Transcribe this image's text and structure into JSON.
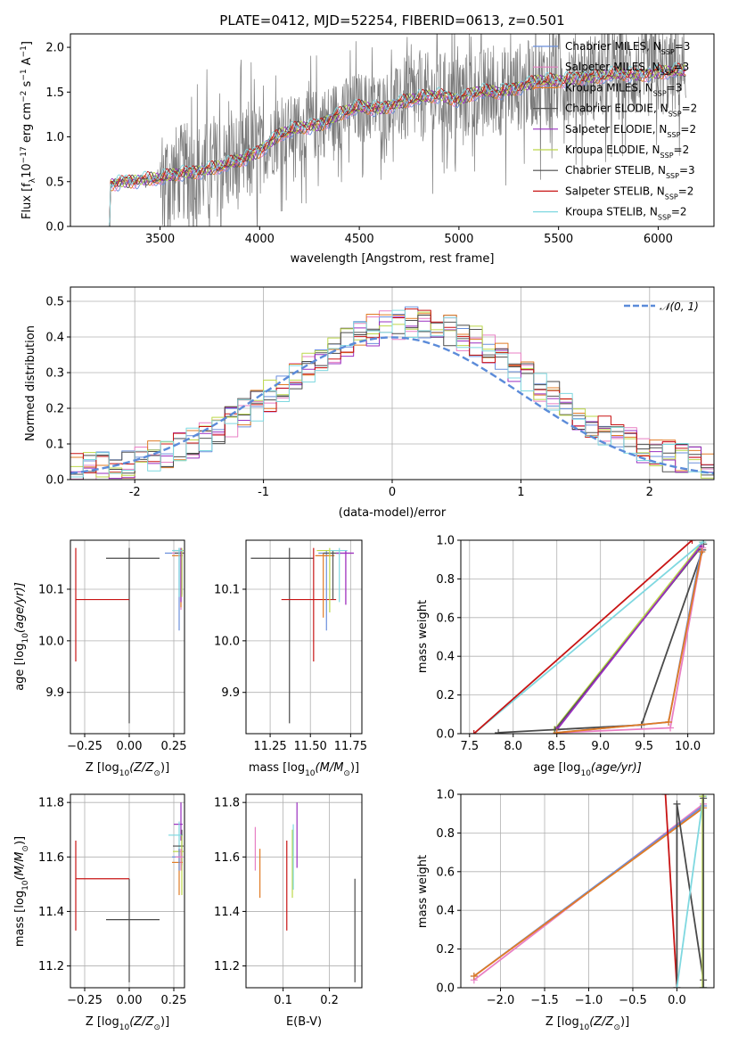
{
  "colors": {
    "chabrier_miles": "#6a8fdc",
    "salpeter_miles": "#e87fc4",
    "kroupa_miles": "#e07b25",
    "chabrier_elodie": "#555555",
    "salpeter_elodie": "#9a2fc0",
    "kroupa_elodie": "#bcd84a",
    "chabrier_stelib": "#4a4a4a",
    "salpeter_stelib": "#c81414",
    "kroupa_stelib": "#7fd8e0",
    "data": "#7a7a7a",
    "gauss": "#5b8bd9"
  },
  "legend": {
    "chabrier_miles": "Chabrier MILES, N",
    "chabrier_miles_sub": "SSP",
    "chabrier_miles_val": "=3",
    "salpeter_miles": "Salpeter MILES, N",
    "salpeter_miles_sub": "SSP",
    "salpeter_miles_val": "=3",
    "kroupa_miles": "Kroupa MILES, N",
    "kroupa_miles_sub": "SSP",
    "kroupa_miles_val": "=3",
    "chabrier_elodie": "Chabrier ELODIE, N",
    "chabrier_elodie_sub": "SSP",
    "chabrier_elodie_val": "=2",
    "salpeter_elodie": "Salpeter ELODIE, N",
    "salpeter_elodie_sub": "SSP",
    "salpeter_elodie_val": "=2",
    "kroupa_elodie": "Kroupa ELODIE, N",
    "kroupa_elodie_sub": "SSP",
    "kroupa_elodie_val": "=2",
    "chabrier_stelib": "Chabrier STELIB, N",
    "chabrier_stelib_sub": "SSP",
    "chabrier_stelib_val": "=3",
    "salpeter_stelib": "Salpeter STELIB, N",
    "salpeter_stelib_sub": "SSP",
    "salpeter_stelib_val": "=2",
    "kroupa_stelib": "Kroupa STELIB, N",
    "kroupa_stelib_sub": "SSP",
    "kroupa_stelib_val": "=2",
    "gauss": "𝒩(0, 1)"
  },
  "chart_data": [
    {
      "id": "spectrum",
      "type": "line",
      "title": "PLATE=0412, MJD=52254, FIBERID=0613, z=0.501",
      "xlabel": "wavelength [Angstrom, rest frame]",
      "ylabel_parts": [
        "Flux [f",
        "λ",
        "10",
        "−17",
        " erg cm",
        "−2",
        " s",
        "−1",
        " A",
        "−1",
        "]"
      ],
      "xlim": [
        3050,
        6280
      ],
      "ylim": [
        0,
        2.15
      ],
      "xticks": [
        3500,
        4000,
        4500,
        5000,
        5500,
        6000
      ],
      "yticks": [
        0.0,
        0.5,
        1.0,
        1.5,
        2.0
      ],
      "model_continuum": {
        "x": [
          3240,
          3250,
          3300,
          3400,
          3500,
          3600,
          3700,
          3800,
          3900,
          4000,
          4100,
          4200,
          4300,
          4400,
          4500,
          4600,
          4700,
          4800,
          4900,
          5000,
          5100,
          5200,
          5300,
          5400,
          5500,
          5600,
          5700,
          5800,
          5900,
          6000,
          6100
        ],
        "y": [
          0.0,
          0.47,
          0.5,
          0.52,
          0.53,
          0.6,
          0.62,
          0.66,
          0.74,
          0.85,
          1.02,
          1.1,
          1.14,
          1.25,
          1.33,
          1.32,
          1.38,
          1.43,
          1.47,
          1.42,
          1.5,
          1.5,
          1.56,
          1.62,
          1.62,
          1.67,
          1.67,
          1.7,
          1.7,
          1.72,
          1.73
        ]
      }
    },
    {
      "id": "residuals",
      "type": "step",
      "xlabel": "(data-model)/error",
      "ylabel": "Normed distribution",
      "xlim": [
        -2.5,
        2.5
      ],
      "ylim": [
        0,
        0.54
      ],
      "xticks": [
        -2,
        -1,
        0,
        1,
        2
      ],
      "yticks": [
        0.0,
        0.1,
        0.2,
        0.3,
        0.4,
        0.5
      ],
      "gaussian": {
        "mean": 0,
        "sigma": 1
      }
    },
    {
      "id": "age_vs_Z",
      "type": "errorbar",
      "xlabel_parts": [
        "Z [log",
        "10",
        "(Z/Z",
        "⊙",
        ")]"
      ],
      "ylabel_parts": [
        "age  [log",
        "10",
        "(age/yr)]"
      ],
      "xlim": [
        -0.33,
        0.31
      ],
      "ylim": [
        9.82,
        10.195
      ],
      "xticks": [
        -0.25,
        0.0,
        0.25
      ],
      "xtick_labels": [
        "−0.25",
        "0.00",
        "0.25"
      ],
      "yticks": [
        9.9,
        10.0,
        10.1
      ],
      "ytick_labels": [
        "9.9",
        "10.0",
        "10.1"
      ],
      "points": [
        {
          "series": "chabrier_stelib",
          "x": 0.0,
          "xerr": [
            0.13,
            0.17
          ],
          "y": 10.16,
          "yerr": [
            0.32,
            0.02
          ]
        },
        {
          "series": "salpeter_stelib",
          "x": -0.3,
          "xerr": [
            0.0,
            0.3
          ],
          "y": 10.08,
          "yerr": [
            0.12,
            0.1
          ]
        },
        {
          "series": "chabrier_miles",
          "x": 0.28,
          "xerr": [
            0.08,
            0.02
          ],
          "y": 10.17,
          "yerr": [
            0.15,
            0.01
          ]
        },
        {
          "series": "salpeter_miles",
          "x": 0.29,
          "xerr": [
            0.05,
            0.02
          ],
          "y": 10.17,
          "yerr": [
            0.11,
            0.01
          ]
        },
        {
          "series": "kroupa_miles",
          "x": 0.29,
          "xerr": [
            0.05,
            0.01
          ],
          "y": 10.165,
          "yerr": [
            0.1,
            0.005
          ]
        },
        {
          "series": "chabrier_elodie",
          "x": 0.295,
          "xerr": [
            0.04,
            0.01
          ],
          "y": 10.17,
          "yerr": [
            0.08,
            0.005
          ]
        },
        {
          "series": "salpeter_elodie",
          "x": 0.29,
          "xerr": [
            0.04,
            0.01
          ],
          "y": 10.175,
          "yerr": [
            0.1,
            0.005
          ]
        },
        {
          "series": "kroupa_elodie",
          "x": 0.295,
          "xerr": [
            0.05,
            0.01
          ],
          "y": 10.175,
          "yerr": [
            0.09,
            0.005
          ]
        },
        {
          "series": "kroupa_stelib",
          "x": 0.28,
          "xerr": [
            0.04,
            0.02
          ],
          "y": 10.175,
          "yerr": [
            0.09,
            0.005
          ]
        }
      ]
    },
    {
      "id": "age_vs_mass",
      "type": "errorbar",
      "xlabel_parts": [
        "mass [log",
        "10",
        "(M/M",
        "⊙",
        ")]"
      ],
      "xlim": [
        11.1,
        11.82
      ],
      "ylim": [
        9.82,
        10.195
      ],
      "xticks": [
        11.25,
        11.5,
        11.75
      ],
      "xtick_labels": [
        "11.25",
        "11.50",
        "11.75"
      ],
      "yticks": [
        9.9,
        10.0,
        10.1
      ],
      "ytick_labels": [
        "9.9",
        "10.0",
        "10.1"
      ],
      "points": [
        {
          "series": "chabrier_stelib",
          "x": 11.37,
          "xerr": [
            0.24,
            0.15
          ],
          "y": 10.16,
          "yerr": [
            0.32,
            0.02
          ]
        },
        {
          "series": "salpeter_stelib",
          "x": 11.52,
          "xerr": [
            0.2,
            0.14
          ],
          "y": 10.08,
          "yerr": [
            0.12,
            0.1
          ]
        },
        {
          "series": "chabrier_miles",
          "x": 11.6,
          "xerr": [
            0.05,
            0.05
          ],
          "y": 10.17,
          "yerr": [
            0.15,
            0.005
          ]
        },
        {
          "series": "salpeter_miles",
          "x": 11.72,
          "xerr": [
            0.05,
            0.05
          ],
          "y": 10.17,
          "yerr": [
            0.1,
            0.005
          ]
        },
        {
          "series": "kroupa_miles",
          "x": 11.58,
          "xerr": [
            0.05,
            0.07
          ],
          "y": 10.165,
          "yerr": [
            0.12,
            0.005
          ]
        },
        {
          "series": "chabrier_elodie",
          "x": 11.64,
          "xerr": [
            0.06,
            0.05
          ],
          "y": 10.17,
          "yerr": [
            0.09,
            0.005
          ]
        },
        {
          "series": "salpeter_elodie",
          "x": 11.72,
          "xerr": [
            0.06,
            0.05
          ],
          "y": 10.17,
          "yerr": [
            0.1,
            0.005
          ]
        },
        {
          "series": "kroupa_elodie",
          "x": 11.62,
          "xerr": [
            0.08,
            0.06
          ],
          "y": 10.175,
          "yerr": [
            0.12,
            0.005
          ]
        },
        {
          "series": "kroupa_stelib",
          "x": 11.68,
          "xerr": [
            0.06,
            0.05
          ],
          "y": 10.175,
          "yerr": [
            0.1,
            0.005
          ]
        }
      ]
    },
    {
      "id": "weight_vs_age",
      "type": "line",
      "xlabel_parts": [
        "age  [log",
        "10",
        "(age/yr)]"
      ],
      "ylabel": "mass weight",
      "xlim": [
        7.4,
        10.3
      ],
      "ylim": [
        0,
        1.0
      ],
      "xticks": [
        7.5,
        8.0,
        8.5,
        9.0,
        9.5,
        10.0
      ],
      "xtick_labels": [
        "7.5",
        "8.0",
        "8.5",
        "9.0",
        "9.5",
        "10.0"
      ],
      "yticks": [
        0.0,
        0.2,
        0.4,
        0.6,
        0.8,
        1.0
      ],
      "ytick_labels": [
        "0.0",
        "0.2",
        "0.4",
        "0.6",
        "0.8",
        "1.0"
      ],
      "series": [
        {
          "name": "kroupa_elodie",
          "x": [
            8.47,
            10.17
          ],
          "y": [
            0.02,
            0.99
          ]
        },
        {
          "name": "chabrier_elodie",
          "x": [
            8.48,
            10.18
          ],
          "y": [
            0.02,
            0.98
          ]
        },
        {
          "name": "salpeter_elodie",
          "x": [
            8.5,
            10.15
          ],
          "y": [
            0.02,
            0.97
          ]
        },
        {
          "name": "kroupa_stelib",
          "x": [
            7.55,
            10.17
          ],
          "y": [
            0.0,
            0.99
          ]
        },
        {
          "name": "salpeter_stelib",
          "x": [
            7.55,
            10.05
          ],
          "y": [
            0.0,
            1.0
          ]
        },
        {
          "name": "chabrier_stelib",
          "x": [
            7.83,
            9.47,
            10.17
          ],
          "y": [
            0.005,
            0.045,
            0.95
          ]
        },
        {
          "name": "chabrier_miles",
          "x": [
            8.5,
            9.78,
            10.15
          ],
          "y": [
            0.005,
            0.06,
            0.94
          ]
        },
        {
          "name": "salpeter_miles",
          "x": [
            8.5,
            9.8,
            10.17
          ],
          "y": [
            0.005,
            0.03,
            0.96
          ]
        },
        {
          "name": "kroupa_miles",
          "x": [
            8.5,
            9.78,
            10.16
          ],
          "y": [
            0.005,
            0.06,
            0.94
          ]
        }
      ]
    },
    {
      "id": "mass_vs_Z",
      "type": "errorbar",
      "xlabel_parts": [
        "Z [log",
        "10",
        "(Z/Z",
        "⊙",
        ")]"
      ],
      "ylabel_parts": [
        "mass [log",
        "10",
        "(M/M",
        "⊙",
        ")]"
      ],
      "xlim": [
        -0.33,
        0.31
      ],
      "ylim": [
        11.12,
        11.83
      ],
      "xticks": [
        -0.25,
        0.0,
        0.25
      ],
      "xtick_labels": [
        "−0.25",
        "0.00",
        "0.25"
      ],
      "yticks": [
        11.2,
        11.4,
        11.6,
        11.8
      ],
      "ytick_labels": [
        "11.2",
        "11.4",
        "11.6",
        "11.8"
      ],
      "points": [
        {
          "series": "chabrier_stelib",
          "x": 0.0,
          "xerr": [
            0.13,
            0.17
          ],
          "y": 11.37,
          "yerr": [
            0.23,
            0.15
          ]
        },
        {
          "series": "salpeter_stelib",
          "x": -0.3,
          "xerr": [
            0.0,
            0.3
          ],
          "y": 11.52,
          "yerr": [
            0.19,
            0.14
          ]
        },
        {
          "series": "salpeter_elodie",
          "x": 0.29,
          "xerr": [
            0.04,
            0.01
          ],
          "y": 11.72,
          "yerr": [
            0.06,
            0.08
          ]
        },
        {
          "series": "kroupa_stelib",
          "x": 0.28,
          "xerr": [
            0.06,
            0.02
          ],
          "y": 11.68,
          "yerr": [
            0.06,
            0.05
          ]
        },
        {
          "series": "chabrier_elodie",
          "x": 0.295,
          "xerr": [
            0.05,
            0.01
          ],
          "y": 11.64,
          "yerr": [
            0.07,
            0.06
          ]
        },
        {
          "series": "kroupa_elodie",
          "x": 0.295,
          "xerr": [
            0.05,
            0.01
          ],
          "y": 11.62,
          "yerr": [
            0.16,
            0.06
          ]
        },
        {
          "series": "kroupa_miles",
          "x": 0.28,
          "xerr": [
            0.04,
            0.02
          ],
          "y": 11.58,
          "yerr": [
            0.12,
            0.05
          ]
        },
        {
          "series": "chabrier_miles",
          "x": 0.28,
          "xerr": [
            0.04,
            0.02
          ],
          "y": 11.6,
          "yerr": [
            0.05,
            0.03
          ]
        },
        {
          "series": "salpeter_miles",
          "x": 0.29,
          "xerr": [
            0.03,
            0.01
          ],
          "y": 11.6,
          "yerr": [
            0.05,
            0.03
          ]
        }
      ]
    },
    {
      "id": "mass_vs_ebv",
      "type": "errorbar",
      "xlabel": "E(B-V)",
      "xlim": [
        0.02,
        0.27
      ],
      "ylim": [
        11.12,
        11.83
      ],
      "xticks": [
        0.1,
        0.2
      ],
      "xtick_labels": [
        "0.1",
        "0.2"
      ],
      "yticks": [
        11.2,
        11.4,
        11.6,
        11.8
      ],
      "ytick_labels": [
        "11.2",
        "11.4",
        "11.6",
        "11.8"
      ],
      "points": [
        {
          "series": "salpeter_miles",
          "x": 0.04,
          "y": 11.62,
          "yerr": [
            0.07,
            0.09
          ]
        },
        {
          "series": "kroupa_miles",
          "x": 0.05,
          "y": 11.55,
          "yerr": [
            0.1,
            0.08
          ]
        },
        {
          "series": "salpeter_stelib",
          "x": 0.108,
          "y": 11.5,
          "yerr": [
            0.17,
            0.16
          ]
        },
        {
          "series": "kroupa_elodie",
          "x": 0.12,
          "y": 11.58,
          "yerr": [
            0.13,
            0.12
          ]
        },
        {
          "series": "kroupa_stelib",
          "x": 0.122,
          "y": 11.6,
          "yerr": [
            0.12,
            0.12
          ]
        },
        {
          "series": "salpeter_elodie",
          "x": 0.13,
          "y": 11.68,
          "yerr": [
            0.12,
            0.12
          ]
        },
        {
          "series": "chabrier_stelib",
          "x": 0.255,
          "y": 11.33,
          "yerr": [
            0.19,
            0.19
          ]
        }
      ]
    },
    {
      "id": "weight_vs_Z",
      "type": "line",
      "xlabel_parts": [
        "Z [log",
        "10",
        "(Z/Z",
        "⊙",
        ")]"
      ],
      "ylabel": "mass weight",
      "xlim": [
        -2.45,
        0.42
      ],
      "ylim": [
        0,
        1.0
      ],
      "xticks": [
        -2.0,
        -1.5,
        -1.0,
        -0.5,
        0.0
      ],
      "xtick_labels": [
        "−2.0",
        "−1.5",
        "−1.0",
        "−0.5",
        "0.0"
      ],
      "yticks": [
        0.0,
        0.2,
        0.4,
        0.6,
        0.8,
        1.0
      ],
      "ytick_labels": [
        "0.0",
        "0.2",
        "0.4",
        "0.6",
        "0.8",
        "1.0"
      ],
      "series": [
        {
          "name": "salpeter_miles",
          "x": [
            -2.3,
            0.3
          ],
          "y": [
            0.04,
            0.95
          ]
        },
        {
          "name": "chabrier_miles",
          "x": [
            -2.3,
            0.3
          ],
          "y": [
            0.06,
            0.94
          ]
        },
        {
          "name": "kroupa_miles",
          "x": [
            -2.3,
            0.3
          ],
          "y": [
            0.06,
            0.93
          ]
        },
        {
          "name": "salpeter_stelib",
          "x": [
            -0.13,
            0.0
          ],
          "y": [
            1.0,
            0.0
          ]
        },
        {
          "name": "chabrier_stelib",
          "x": [
            0.0,
            0.0,
            0.3,
            0.3
          ],
          "y": [
            0.0,
            0.95,
            0.04,
            0.0
          ]
        },
        {
          "name": "kroupa_stelib",
          "x": [
            0.0,
            0.3,
            0.3
          ],
          "y": [
            0.0,
            0.99,
            0.0
          ]
        },
        {
          "name": "kroupa_elodie",
          "x": [
            0.29,
            0.29
          ],
          "y": [
            0.0,
            0.99
          ]
        },
        {
          "name": "chabrier_elodie",
          "x": [
            0.3,
            0.3
          ],
          "y": [
            0.0,
            0.98
          ]
        }
      ]
    }
  ]
}
